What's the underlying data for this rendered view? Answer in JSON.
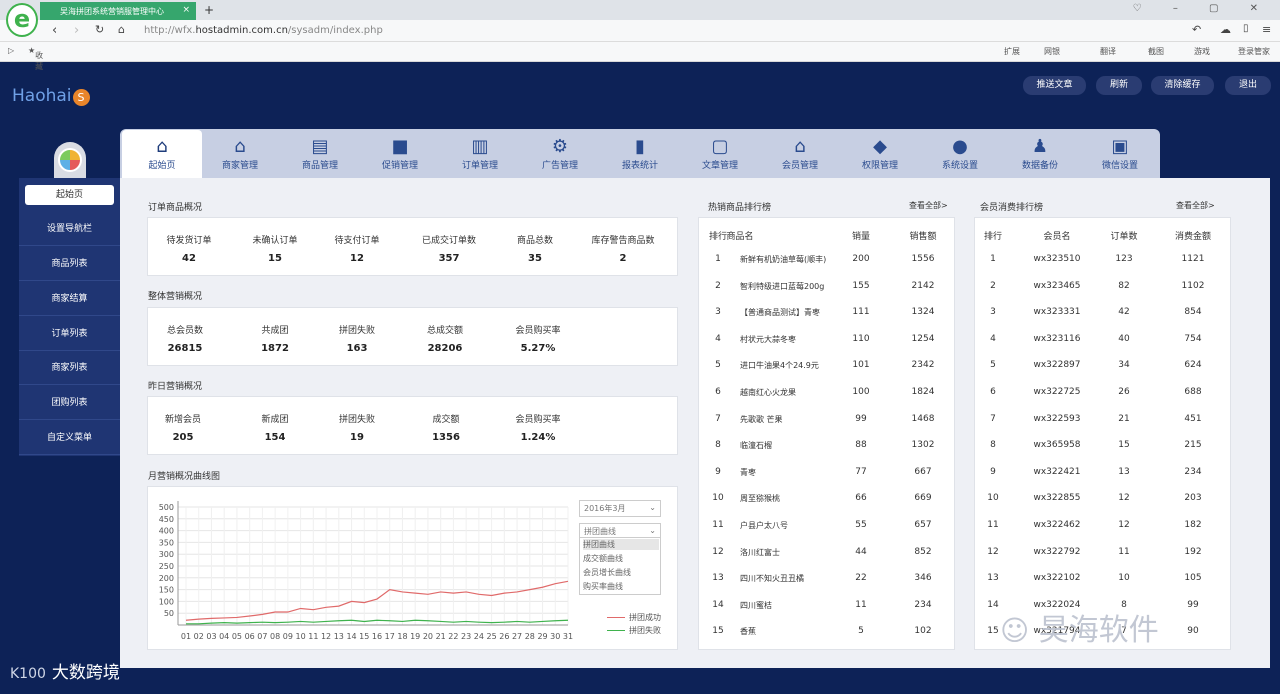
{
  "browser": {
    "tab_title": "吴海拼团系统营销服管理中心",
    "tab_close": "×",
    "new_tab": "+",
    "url_prefix": "http://wfx.",
    "url_host": "hostadmin.com.cn",
    "url_path": "/sysadm/index.php",
    "bookmarks_label": "收藏",
    "toolbar_items": [
      "扩展",
      "网银",
      "翻译",
      "截图",
      "游戏",
      "登录管家"
    ]
  },
  "app": {
    "brand": "Haohai",
    "brand_badge": "S",
    "header_buttons": [
      "推送文章",
      "刷新",
      "清除缓存",
      "退出"
    ]
  },
  "sidebar": {
    "items": [
      "起始页",
      "设置导航栏",
      "商品列表",
      "商家结算",
      "订单列表",
      "商家列表",
      "团购列表",
      "自定义菜单"
    ]
  },
  "modules": [
    {
      "label": "起始页",
      "icon": "home-icon"
    },
    {
      "label": "商家管理",
      "icon": "store-icon"
    },
    {
      "label": "商品管理",
      "icon": "clipboard-icon"
    },
    {
      "label": "促销管理",
      "icon": "lock-icon"
    },
    {
      "label": "订单管理",
      "icon": "document-icon"
    },
    {
      "label": "广告管理",
      "icon": "gears-icon"
    },
    {
      "label": "报表统计",
      "icon": "bar-chart-icon"
    },
    {
      "label": "文章管理",
      "icon": "bag-icon"
    },
    {
      "label": "会员管理",
      "icon": "house-icon"
    },
    {
      "label": "权限管理",
      "icon": "tag-icon"
    },
    {
      "label": "系统设置",
      "icon": "chat-icon"
    },
    {
      "label": "数据备份",
      "icon": "user-lock-icon"
    },
    {
      "label": "微信设置",
      "icon": "box-icon"
    }
  ],
  "order_overview": {
    "title": "订单商品概况",
    "stats": [
      {
        "label": "待发货订单",
        "value": "42"
      },
      {
        "label": "未确认订单",
        "value": "15"
      },
      {
        "label": "待支付订单",
        "value": "12"
      },
      {
        "label": "已成交订单数",
        "value": "357"
      },
      {
        "label": "商品总数",
        "value": "35"
      },
      {
        "label": "库存警告商品数",
        "value": "2"
      }
    ]
  },
  "overall_marketing": {
    "title": "整体营销概况",
    "stats": [
      {
        "label": "总会员数",
        "value": "26815"
      },
      {
        "label": "共成团",
        "value": "1872"
      },
      {
        "label": "拼团失败",
        "value": "163"
      },
      {
        "label": "总成交额",
        "value": "28206"
      },
      {
        "label": "会员购买率",
        "value": "5.27%"
      }
    ]
  },
  "yesterday_marketing": {
    "title": "昨日营销概况",
    "stats": [
      {
        "label": "新增会员",
        "value": "205"
      },
      {
        "label": "新成团",
        "value": "154"
      },
      {
        "label": "拼团失败",
        "value": "19"
      },
      {
        "label": "成交额",
        "value": "1356"
      },
      {
        "label": "会员购买率",
        "value": "1.24%"
      }
    ]
  },
  "monthly_chart": {
    "title": "月营销概况曲线图",
    "month_select": "2016年3月",
    "curve_select": "拼团曲线",
    "curve_options": [
      "拼团曲线",
      "成交额曲线",
      "会员增长曲线",
      "购买率曲线"
    ],
    "legend_success": "拼团成功",
    "legend_fail": "拼团失败",
    "color_success": "#e06a6a",
    "color_fail": "#3fb24d"
  },
  "chart_data": {
    "type": "line",
    "title": "月营销概况曲线图",
    "x": [
      "01",
      "02",
      "03",
      "04",
      "05",
      "06",
      "07",
      "08",
      "09",
      "10",
      "11",
      "12",
      "13",
      "14",
      "15",
      "16",
      "17",
      "18",
      "19",
      "20",
      "21",
      "22",
      "23",
      "24",
      "25",
      "26",
      "27",
      "28",
      "29",
      "30",
      "31"
    ],
    "ylim": [
      0,
      500
    ],
    "yticks": [
      50,
      100,
      150,
      200,
      250,
      300,
      350,
      400,
      450,
      500
    ],
    "series": [
      {
        "name": "拼团成功",
        "values": [
          20,
          25,
          28,
          30,
          32,
          38,
          45,
          55,
          55,
          70,
          65,
          75,
          80,
          100,
          95,
          110,
          150,
          140,
          135,
          130,
          140,
          135,
          140,
          130,
          125,
          135,
          140,
          150,
          160,
          175,
          185
        ]
      },
      {
        "name": "拼团失败",
        "values": [
          5,
          5,
          8,
          10,
          8,
          10,
          12,
          10,
          12,
          15,
          12,
          15,
          18,
          20,
          15,
          20,
          18,
          15,
          20,
          18,
          15,
          12,
          15,
          12,
          10,
          12,
          15,
          12,
          15,
          18,
          20
        ]
      }
    ]
  },
  "hot_products": {
    "title": "热销商品排行榜",
    "more": "查看全部>",
    "headers": [
      "排行",
      "商品名",
      "销量",
      "销售额"
    ],
    "rows": [
      [
        "1",
        "新鲜有机奶油草莓(顺丰)",
        "200",
        "1556"
      ],
      [
        "2",
        "智利特级进口蓝莓200g",
        "155",
        "2142"
      ],
      [
        "3",
        "【普通商品测试】青枣",
        "111",
        "1324"
      ],
      [
        "4",
        "村状元大蒜冬枣",
        "110",
        "1254"
      ],
      [
        "5",
        "进口牛油果4个24.9元",
        "101",
        "2342"
      ],
      [
        "6",
        "越南红心火龙果",
        "100",
        "1824"
      ],
      [
        "7",
        "先歌歌 芒果",
        "99",
        "1468"
      ],
      [
        "8",
        "临潼石榴",
        "88",
        "1302"
      ],
      [
        "9",
        "青枣",
        "77",
        "667"
      ],
      [
        "10",
        "周至猕猴桃",
        "66",
        "669"
      ],
      [
        "11",
        "户县户太八号",
        "55",
        "657"
      ],
      [
        "12",
        "洛川红富士",
        "44",
        "852"
      ],
      [
        "13",
        "四川不知火丑丑橘",
        "22",
        "346"
      ],
      [
        "14",
        "四川蜜桔",
        "11",
        "234"
      ],
      [
        "15",
        "香蕉",
        "5",
        "102"
      ]
    ]
  },
  "member_ranking": {
    "title": "会员消费排行榜",
    "more": "查看全部>",
    "headers": [
      "排行",
      "会员名",
      "订单数",
      "消费金额"
    ],
    "rows": [
      [
        "1",
        "wx323510",
        "123",
        "1121"
      ],
      [
        "2",
        "wx323465",
        "82",
        "1102"
      ],
      [
        "3",
        "wx323331",
        "42",
        "854"
      ],
      [
        "4",
        "wx323116",
        "40",
        "754"
      ],
      [
        "5",
        "wx322897",
        "34",
        "624"
      ],
      [
        "6",
        "wx322725",
        "26",
        "688"
      ],
      [
        "7",
        "wx322593",
        "21",
        "451"
      ],
      [
        "8",
        "wx365958",
        "15",
        "215"
      ],
      [
        "9",
        "wx322421",
        "13",
        "234"
      ],
      [
        "10",
        "wx322855",
        "12",
        "203"
      ],
      [
        "11",
        "wx322462",
        "12",
        "182"
      ],
      [
        "12",
        "wx322792",
        "11",
        "192"
      ],
      [
        "13",
        "wx322102",
        "10",
        "105"
      ],
      [
        "14",
        "wx322024",
        "8",
        "99"
      ],
      [
        "15",
        "wx321794",
        "7",
        "90"
      ]
    ]
  },
  "overlay": {
    "footer_brand": "大数跨境",
    "footer_logo": "K100",
    "watermark": "昊海软件"
  }
}
